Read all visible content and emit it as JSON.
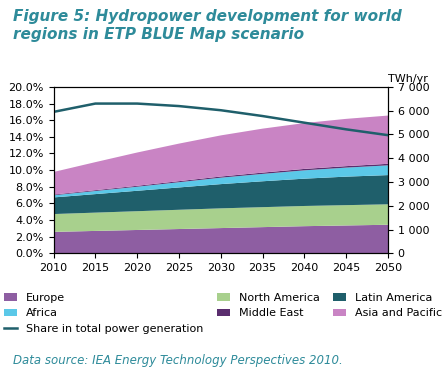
{
  "chart_data": {
    "type": "area",
    "title": "Figure 5: Hydropower development for world regions in ETP BLUE Map scenario",
    "source": "Data source: IEA Energy Technology Perspectives 2010.",
    "y2label": "TWh/yr",
    "x": [
      2010,
      2015,
      2020,
      2025,
      2030,
      2035,
      2040,
      2045,
      2050
    ],
    "xlim": [
      2010,
      2050
    ],
    "xticks": [
      2010,
      2015,
      2020,
      2025,
      2030,
      2035,
      2040,
      2045,
      2050
    ],
    "ylim": [
      0,
      20
    ],
    "yticks": [
      {
        "value": 0,
        "label": "0.0%"
      },
      {
        "value": 2,
        "label": "2.0%"
      },
      {
        "value": 4,
        "label": "4.0%"
      },
      {
        "value": 6,
        "label": "6.0%"
      },
      {
        "value": 8,
        "label": "8.0%"
      },
      {
        "value": 10,
        "label": "10.0%"
      },
      {
        "value": 12,
        "label": "12.0%"
      },
      {
        "value": 14,
        "label": "14.0%"
      },
      {
        "value": 16,
        "label": "16.0%"
      },
      {
        "value": 18,
        "label": "18.0%"
      },
      {
        "value": 20,
        "label": "20.0%"
      }
    ],
    "y2lim": [
      0,
      7000
    ],
    "y2ticks": [
      0,
      {
        "value": 1000,
        "label": "1 000"
      },
      {
        "value": 2000,
        "label": "2 000"
      },
      {
        "value": 3000,
        "label": "3 000"
      },
      {
        "value": 4000,
        "label": "4 000"
      },
      {
        "value": 5000,
        "label": "5 000"
      },
      {
        "value": 6000,
        "label": "6 000"
      },
      {
        "value": 7000,
        "label": "7 000"
      }
    ],
    "stacked": true,
    "grid": false,
    "legend": "lower center",
    "series": [
      {
        "name": "Europe",
        "type": "area",
        "axis": "y2",
        "color": "#8e5ea2",
        "values": [
          900,
          940,
          980,
          1020,
          1060,
          1100,
          1140,
          1170,
          1200
        ]
      },
      {
        "name": "North America",
        "type": "area",
        "axis": "y2",
        "color": "#a8d08d",
        "values": [
          750,
          770,
          790,
          810,
          830,
          840,
          850,
          855,
          860
        ]
      },
      {
        "name": "Latin America",
        "type": "area",
        "axis": "y2",
        "color": "#1f5f6b",
        "values": [
          700,
          780,
          860,
          940,
          1020,
          1090,
          1150,
          1200,
          1230
        ]
      },
      {
        "name": "Africa",
        "type": "area",
        "axis": "y2",
        "color": "#5bc8e8",
        "values": [
          90,
          130,
          170,
          220,
          270,
          310,
          350,
          380,
          410
        ]
      },
      {
        "name": "Middle East",
        "type": "area",
        "axis": "y2",
        "color": "#5a2d6e",
        "values": [
          30,
          35,
          40,
          45,
          50,
          55,
          60,
          62,
          65
        ]
      },
      {
        "name": "Asia and Pacific",
        "type": "area",
        "axis": "y2",
        "color": "#c984c4",
        "values": [
          950,
          1180,
          1400,
          1580,
          1730,
          1850,
          1930,
          1990,
          2030
        ]
      },
      {
        "name": "Share in total power generation",
        "type": "line",
        "axis": "y",
        "color": "#1f5f6b",
        "line_style": "solid",
        "values": [
          17.0,
          18.0,
          18.0,
          17.7,
          17.2,
          16.5,
          15.7,
          14.9,
          14.2
        ]
      }
    ]
  }
}
